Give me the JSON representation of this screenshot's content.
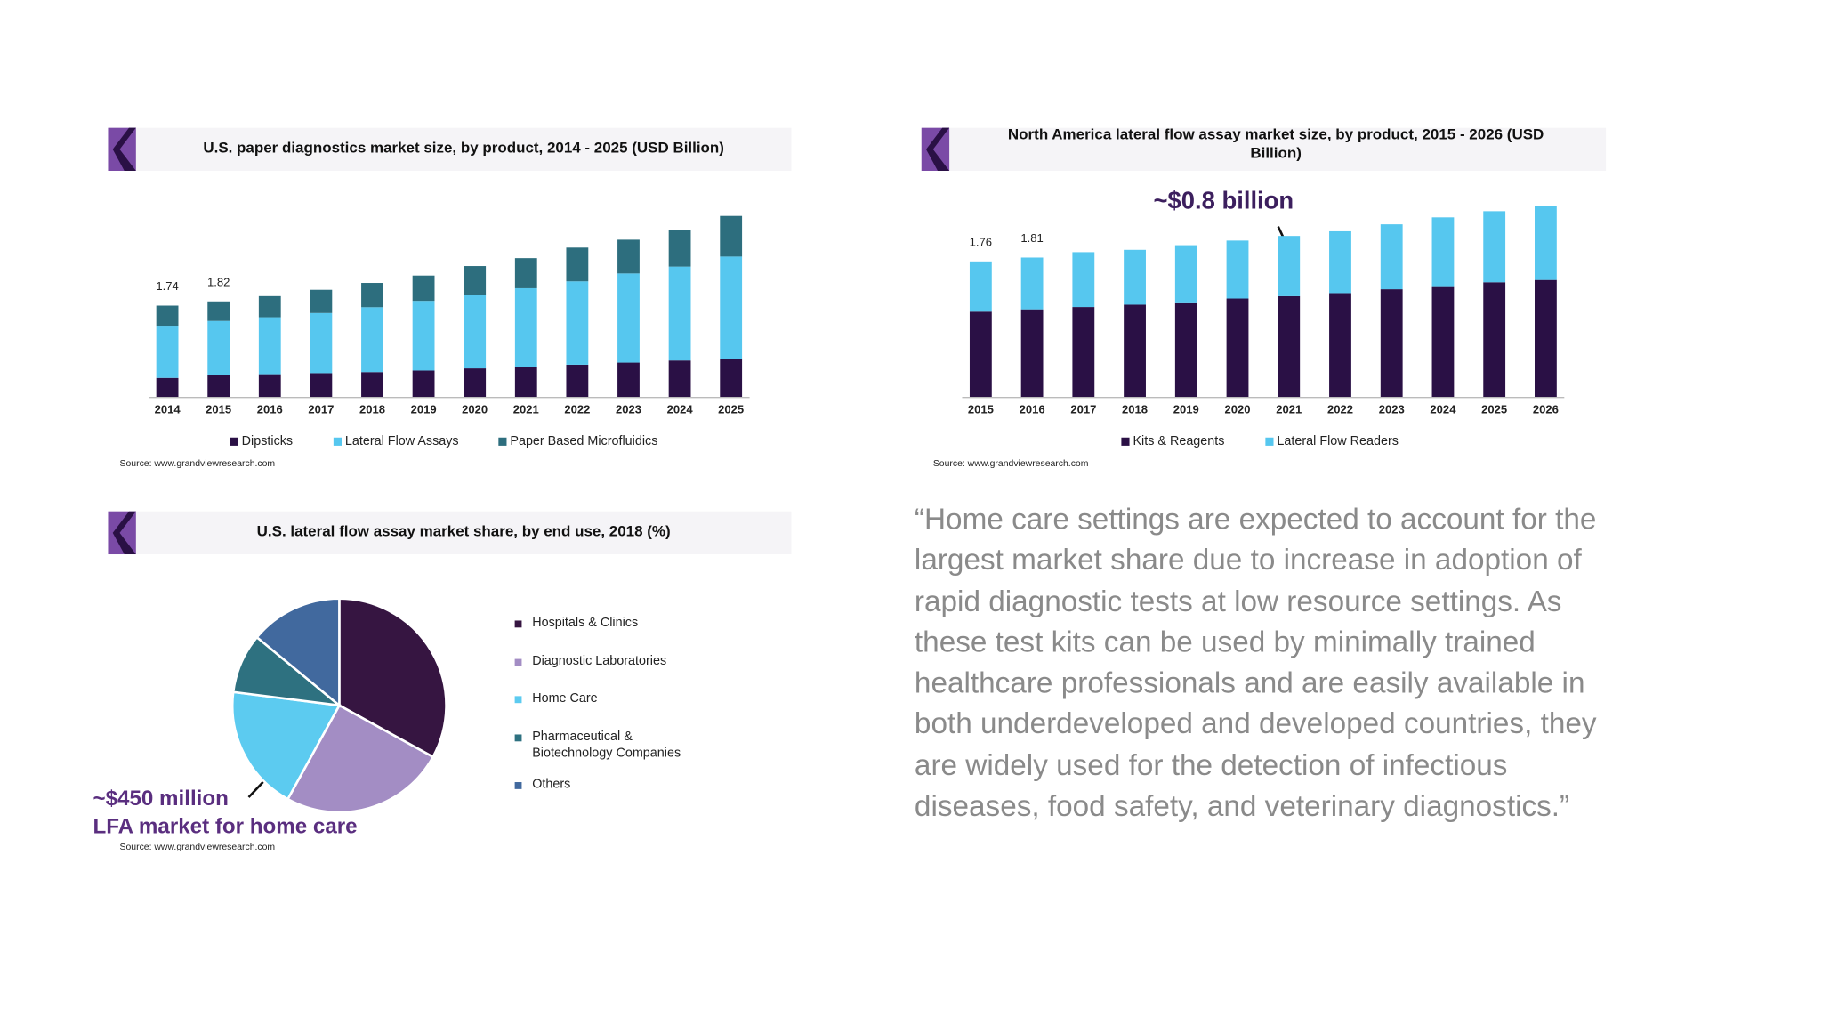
{
  "chart_data": [
    {
      "type": "stacked-bar",
      "title": "U.S. paper diagnostics market size, by product, 2014 - 2025 (USD Billion)",
      "categories": [
        "2014",
        "2015",
        "2016",
        "2017",
        "2018",
        "2019",
        "2020",
        "2021",
        "2022",
        "2023",
        "2024",
        "2025"
      ],
      "series": [
        {
          "name": "Dipsticks",
          "color": "#2a1045",
          "values": [
            0.37,
            0.42,
            0.44,
            0.46,
            0.48,
            0.51,
            0.55,
            0.57,
            0.62,
            0.66,
            0.7,
            0.73
          ]
        },
        {
          "name": "Lateral Flow Assays",
          "color": "#56c7ef",
          "values": [
            0.99,
            1.03,
            1.08,
            1.14,
            1.23,
            1.32,
            1.39,
            1.5,
            1.58,
            1.69,
            1.78,
            1.94
          ]
        },
        {
          "name": "Paper Based Microfluidics",
          "color": "#2d6e7e",
          "values": [
            0.38,
            0.37,
            0.4,
            0.44,
            0.46,
            0.48,
            0.55,
            0.57,
            0.64,
            0.64,
            0.7,
            0.77
          ]
        }
      ],
      "totals": [
        1.74,
        1.82,
        null,
        null,
        null,
        null,
        null,
        null,
        null,
        null,
        null,
        null
      ],
      "source": "Source: www.grandviewresearch.com"
    },
    {
      "type": "stacked-bar",
      "title": "North America lateral flow assay market size, by product, 2015 - 2026 (USD Billion)",
      "categories": [
        "2015",
        "2016",
        "2017",
        "2018",
        "2019",
        "2020",
        "2021",
        "2022",
        "2023",
        "2024",
        "2025",
        "2026"
      ],
      "series": [
        {
          "name": "Kits & Reagents",
          "color": "#2a1045",
          "values": [
            1.11,
            1.14,
            1.17,
            1.2,
            1.23,
            1.28,
            1.31,
            1.35,
            1.4,
            1.44,
            1.49,
            1.52
          ]
        },
        {
          "name": "Lateral Flow Readers",
          "color": "#56c7ef",
          "values": [
            0.65,
            0.67,
            0.71,
            0.71,
            0.74,
            0.75,
            0.78,
            0.8,
            0.84,
            0.89,
            0.92,
            0.96
          ]
        }
      ],
      "totals": [
        1.76,
        1.81,
        null,
        null,
        null,
        null,
        null,
        null,
        null,
        null,
        null,
        null
      ],
      "annotations": [
        "~$0.8 billion"
      ],
      "source": "Source: www.grandviewresearch.com"
    },
    {
      "type": "pie",
      "title": "U.S. lateral flow assay market share, by end use, 2018 (%)",
      "categories": [
        "Hospitals & Clinics",
        "Diagnostic Laboratories",
        "Home Care",
        "Pharmaceutical & Biotechnology Companies",
        "Others"
      ],
      "values": [
        33,
        25,
        19,
        9,
        14
      ],
      "colors": [
        "#361541",
        "#a38dc4",
        "#5ccbf0",
        "#2e7180",
        "#41699e"
      ],
      "annotations": [
        "~$450 million",
        "LFA market for home care"
      ],
      "source": "Source: www.grandviewresearch.com"
    }
  ],
  "quote": "“Home care settings are expected to account for the largest market share due to increase in adoption of rapid diagnostic tests at low resource settings. As these test kits can be used by minimally trained healthcare professionals and are easily available in both underdeveloped and developed countries, they are widely used for the detection of infectious diseases, food safety, and veterinary diagnostics.”"
}
